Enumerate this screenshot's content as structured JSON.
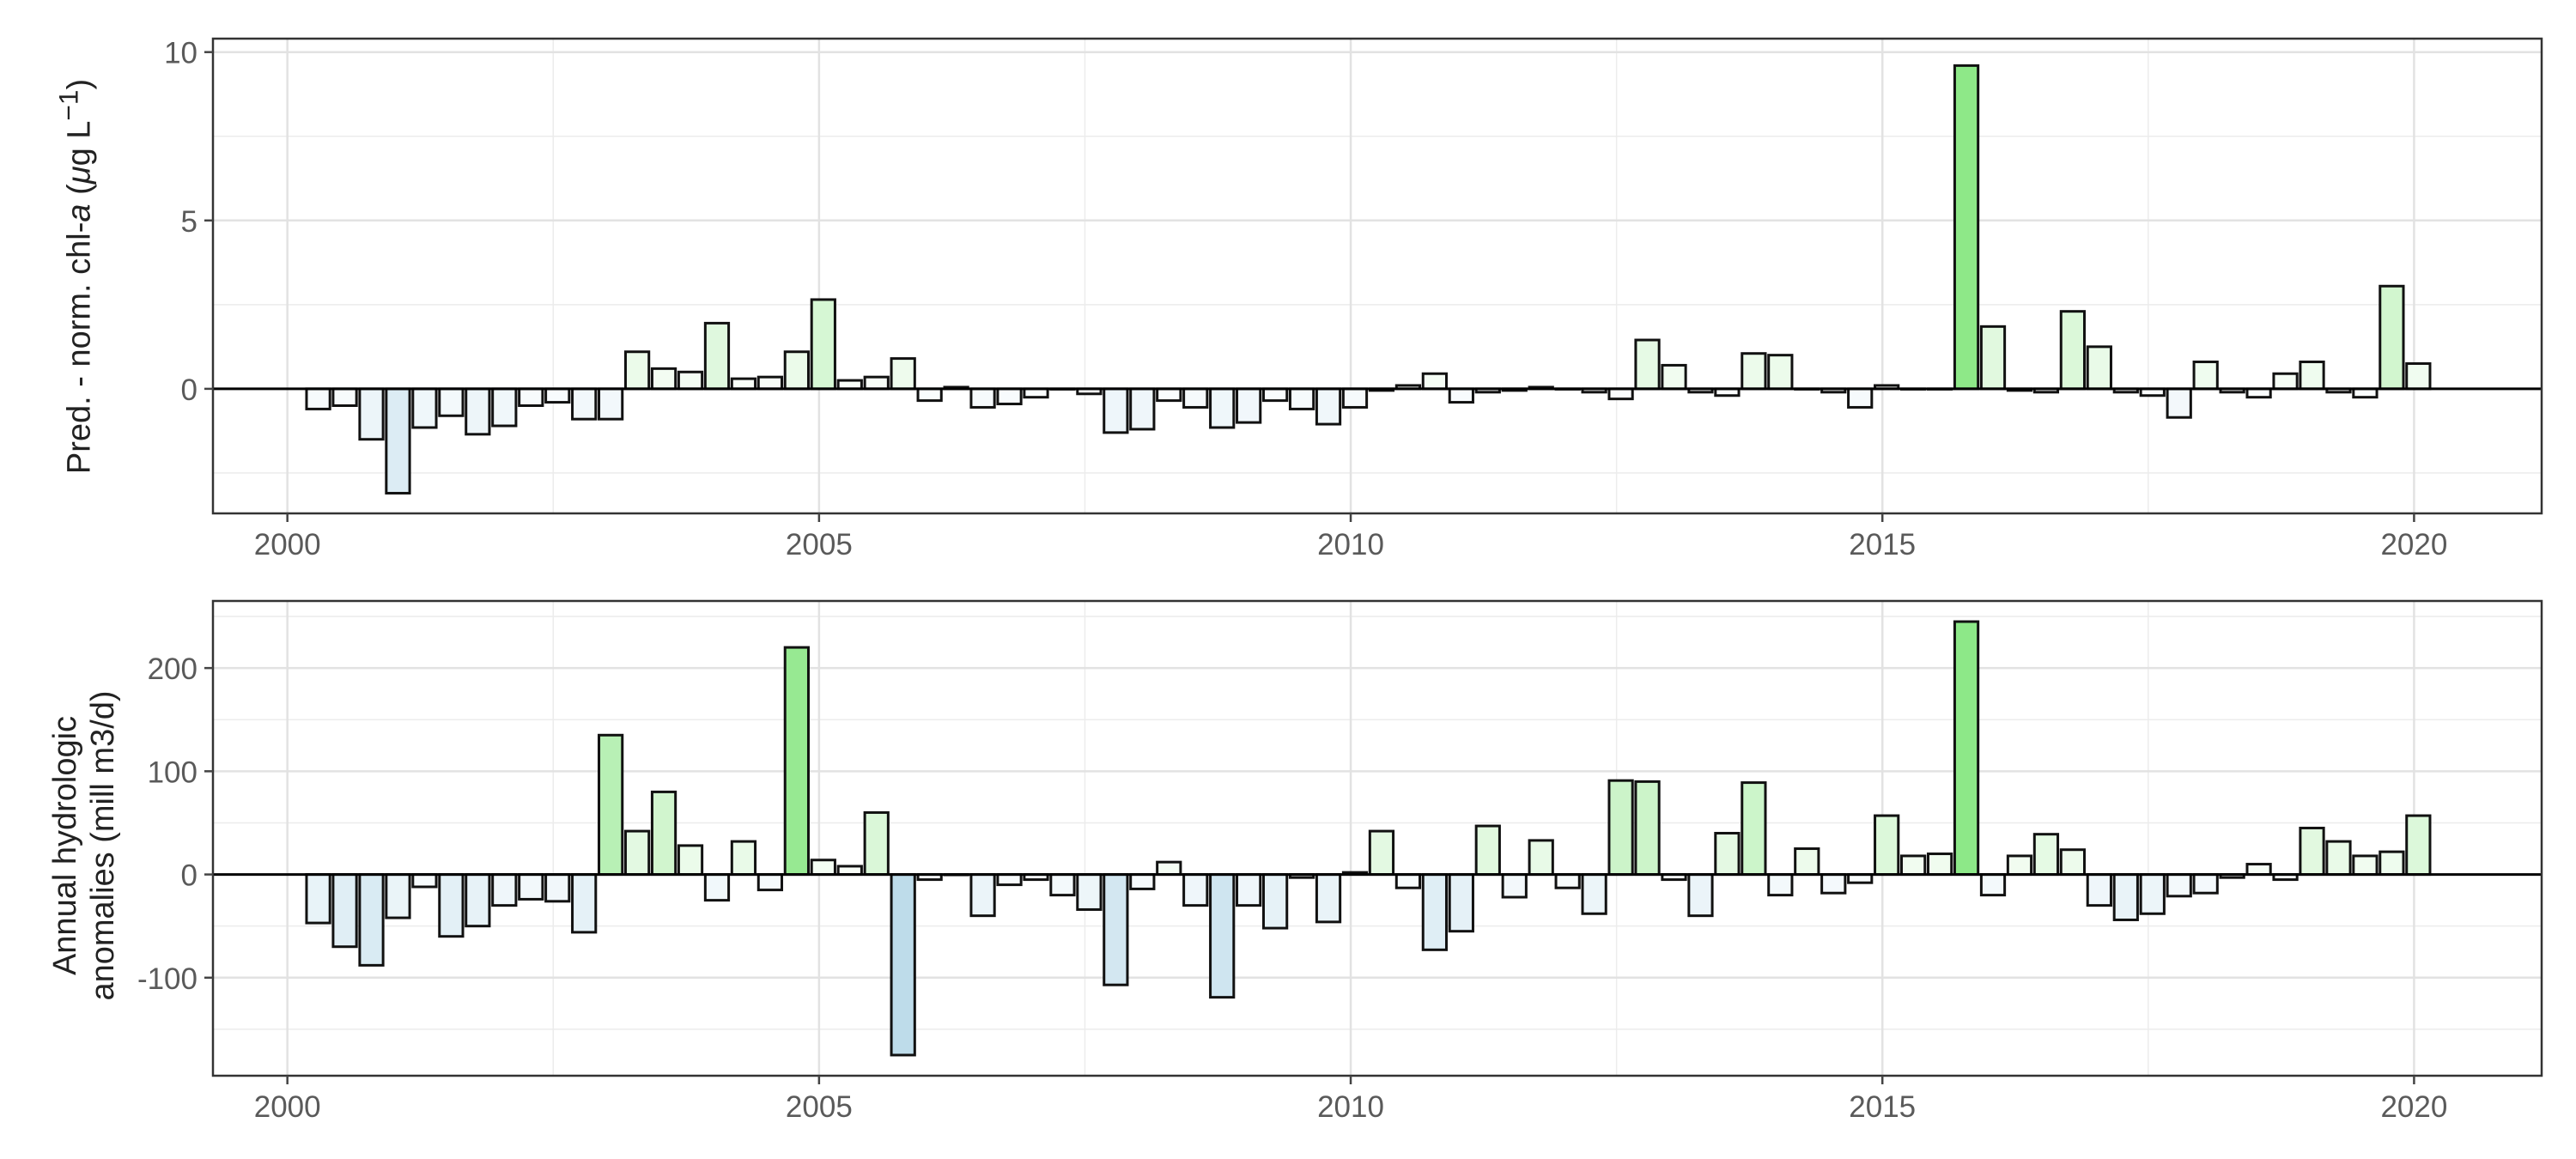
{
  "chart_data": [
    {
      "type": "bar",
      "ylabel_parts": [
        "Pred. - norm. chl-",
        "a",
        " (",
        "μ",
        "g L",
        "−1",
        ")"
      ],
      "ylim": [
        -3.7,
        10.4
      ],
      "yticks": [
        0,
        5,
        10
      ],
      "ytick_labels": [
        "0",
        "5",
        "10"
      ],
      "xlim": [
        1999.3,
        2021.2
      ],
      "xticks": [
        2000,
        2005,
        2010,
        2015,
        2020
      ],
      "xtick_labels": [
        "2000",
        "2005",
        "2010",
        "2015",
        "2020"
      ],
      "grid": true,
      "bar_width_years": 0.22,
      "x": [
        2000.29,
        2000.54,
        2000.79,
        2001.04,
        2001.29,
        2001.54,
        2001.79,
        2002.04,
        2002.29,
        2002.54,
        2002.79,
        2003.04,
        2003.29,
        2003.54,
        2003.79,
        2004.04,
        2004.29,
        2004.54,
        2004.79,
        2005.04,
        2005.29,
        2005.54,
        2005.79,
        2006.04,
        2006.29,
        2006.54,
        2006.79,
        2007.04,
        2007.29,
        2007.54,
        2007.79,
        2008.04,
        2008.29,
        2008.54,
        2008.79,
        2009.04,
        2009.29,
        2009.54,
        2009.79,
        2010.04,
        2010.29,
        2010.54,
        2010.79,
        2011.04,
        2011.29,
        2011.54,
        2011.79,
        2012.04,
        2012.29,
        2012.54,
        2012.79,
        2013.04,
        2013.29,
        2013.54,
        2013.79,
        2014.04,
        2014.29,
        2014.54,
        2014.79,
        2015.04,
        2015.29,
        2015.54,
        2015.79,
        2016.04,
        2016.29,
        2016.54,
        2016.79,
        2017.04,
        2017.29,
        2017.54,
        2017.79,
        2018.04,
        2018.29,
        2018.54,
        2018.79,
        2019.04,
        2019.29,
        2019.54,
        2019.79,
        2020.04
      ],
      "values": [
        -0.6,
        -0.5,
        -1.5,
        -3.1,
        -1.15,
        -0.8,
        -1.35,
        -1.1,
        -0.5,
        -0.4,
        -0.9,
        -0.9,
        1.1,
        0.6,
        0.5,
        1.95,
        0.3,
        0.35,
        1.1,
        2.65,
        0.25,
        0.35,
        0.9,
        -0.35,
        0.05,
        -0.55,
        -0.45,
        -0.25,
        0.0,
        -0.15,
        -1.3,
        -1.2,
        -0.35,
        -0.55,
        -1.15,
        -1.0,
        -0.35,
        -0.6,
        -1.05,
        -0.55,
        -0.05,
        0.1,
        0.45,
        -0.4,
        -0.1,
        -0.05,
        0.05,
        0.0,
        -0.1,
        -0.3,
        1.45,
        0.7,
        -0.1,
        -0.2,
        1.05,
        1.0,
        0.0,
        -0.1,
        -0.55,
        0.1,
        0.0,
        0.0,
        9.6,
        1.85,
        -0.05,
        -0.1,
        2.3,
        1.25,
        -0.1,
        -0.2,
        -0.85,
        0.8,
        -0.1,
        -0.25,
        0.45,
        0.8,
        -0.1,
        -0.25,
        3.05,
        0.75
      ]
    },
    {
      "type": "bar",
      "ylabel_lines": [
        "Annual hydrologic",
        "anomalies (mill m3/d)"
      ],
      "ylim": [
        -195,
        265
      ],
      "yticks": [
        -100,
        0,
        100,
        200
      ],
      "ytick_labels": [
        "-100",
        "0",
        "100",
        "200"
      ],
      "xlim": [
        1999.3,
        2021.2
      ],
      "xticks": [
        2000,
        2005,
        2010,
        2015,
        2020
      ],
      "xtick_labels": [
        "2000",
        "2005",
        "2010",
        "2015",
        "2020"
      ],
      "grid": true,
      "bar_width_years": 0.22,
      "x": [
        2000.29,
        2000.54,
        2000.79,
        2001.04,
        2001.29,
        2001.54,
        2001.79,
        2002.04,
        2002.29,
        2002.54,
        2002.79,
        2003.04,
        2003.29,
        2003.54,
        2003.79,
        2004.04,
        2004.29,
        2004.54,
        2004.79,
        2005.04,
        2005.29,
        2005.54,
        2005.79,
        2006.04,
        2006.29,
        2006.54,
        2006.79,
        2007.04,
        2007.29,
        2007.54,
        2007.79,
        2008.04,
        2008.29,
        2008.54,
        2008.79,
        2009.04,
        2009.29,
        2009.54,
        2009.79,
        2010.04,
        2010.29,
        2010.54,
        2010.79,
        2011.04,
        2011.29,
        2011.54,
        2011.79,
        2012.04,
        2012.29,
        2012.54,
        2012.79,
        2013.04,
        2013.29,
        2013.54,
        2013.79,
        2014.04,
        2014.29,
        2014.54,
        2014.79,
        2015.04,
        2015.29,
        2015.54,
        2015.79,
        2016.04,
        2016.29,
        2016.54,
        2016.79,
        2017.04,
        2017.29,
        2017.54,
        2017.79,
        2018.04,
        2018.29,
        2018.54,
        2018.79,
        2019.04,
        2019.29,
        2019.54,
        2019.79,
        2020.04
      ],
      "values": [
        -47,
        -70,
        -88,
        -42,
        -12,
        -60,
        -50,
        -30,
        -24,
        -26,
        -56,
        135,
        42,
        80,
        28,
        -25,
        32,
        -15,
        220,
        14,
        8,
        60,
        -175,
        -5,
        0,
        -40,
        -10,
        -5,
        -20,
        -34,
        -107,
        -14,
        12,
        -30,
        -119,
        -30,
        -52,
        -3,
        -46,
        2,
        42,
        -13,
        -73,
        -55,
        47,
        -22,
        33,
        -13,
        -38,
        91,
        90,
        -5,
        -40,
        40,
        89,
        -20,
        25,
        -18,
        -8,
        57,
        18,
        20,
        245,
        -20,
        18,
        39,
        24,
        -30,
        -44,
        -38,
        -21,
        -18,
        -3,
        10,
        -5,
        45,
        32,
        18,
        22,
        57
      ]
    }
  ]
}
